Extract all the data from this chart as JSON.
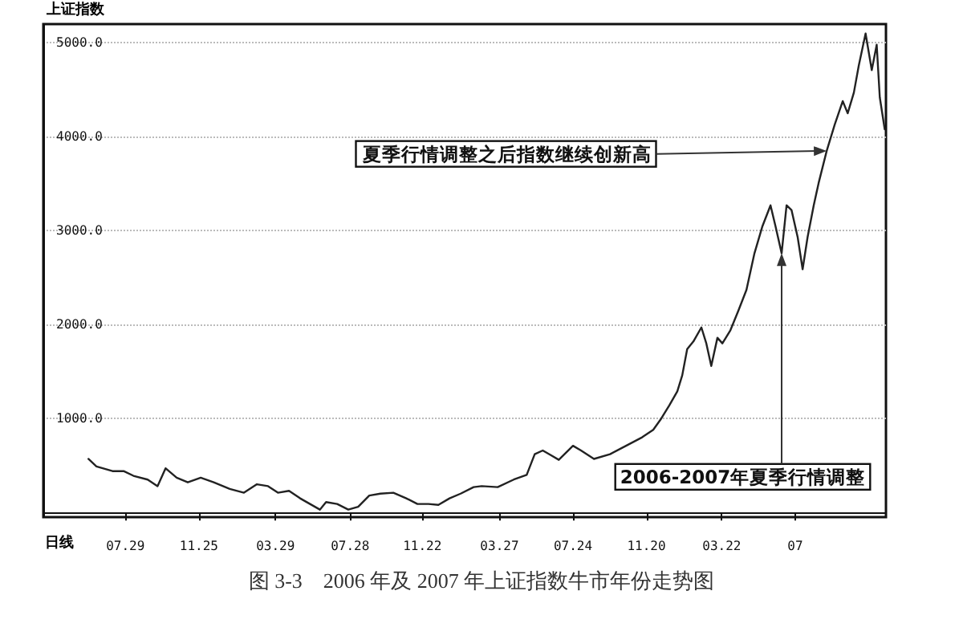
{
  "chart_data": {
    "type": "line",
    "title": "图 3-3　2006 年及 2007 年上证指数牛市年份走势图",
    "annotations": [
      "上证指数",
      {
        "text": "夏季行情调整之后指数继续创新高",
        "x": "2007-09-08",
        "y": 3850
      },
      {
        "text": "2006-2007年夏季行情调整",
        "x": "2007-06-27",
        "y": 2760
      },
      "日线"
    ],
    "x": [
      "2004-05-30",
      "2004-06-12",
      "2004-07-08",
      "2004-07-26",
      "2004-08-11",
      "2004-09-03",
      "2004-09-19",
      "2004-10-02",
      "2004-10-20",
      "2004-11-07",
      "2004-11-28",
      "2004-12-19",
      "2005-01-14",
      "2005-02-06",
      "2005-02-27",
      "2005-03-17",
      "2005-04-02",
      "2005-04-20",
      "2005-05-08",
      "2005-05-24",
      "2005-06-09",
      "2005-06-19",
      "2005-07-07",
      "2005-07-25",
      "2005-08-10",
      "2005-08-28",
      "2005-09-15",
      "2005-10-06",
      "2005-10-27",
      "2005-11-14",
      "2005-12-02",
      "2005-12-18",
      "2006-01-05",
      "2006-01-23",
      "2006-02-13",
      "2006-02-26",
      "2006-03-24",
      "2006-04-19",
      "2006-05-10",
      "2006-05-23",
      "2006-06-05",
      "2006-06-18",
      "2006-07-01",
      "2006-07-24",
      "2006-08-06",
      "2006-08-27",
      "2006-09-22",
      "2006-10-18",
      "2006-11-13",
      "2006-12-01",
      "2006-12-14",
      "2006-12-27",
      "2007-01-09",
      "2007-01-17",
      "2007-01-25",
      "2007-02-04",
      "2007-02-17",
      "2007-02-25",
      "2007-03-05",
      "2007-03-15",
      "2007-03-23",
      "2007-04-05",
      "2007-04-18",
      "2007-05-01",
      "2007-05-14",
      "2007-05-27",
      "2007-06-09",
      "2007-06-17",
      "2007-06-27",
      "2007-07-05",
      "2007-07-13",
      "2007-07-23",
      "2007-07-31",
      "2007-08-08",
      "2007-08-18",
      "2007-08-26",
      "2007-09-08",
      "2007-09-21",
      "2007-10-04",
      "2007-10-12",
      "2007-10-22",
      "2007-10-30",
      "2007-11-10",
      "2007-11-20",
      "2007-11-28",
      "2007-12-03",
      "2007-12-11"
    ],
    "series": [
      {
        "color": "#222222",
        "values": [
          570,
          490,
          440,
          440,
          390,
          350,
          280,
          470,
          370,
          320,
          370,
          320,
          250,
          210,
          300,
          280,
          210,
          230,
          150,
          90,
          30,
          110,
          90,
          30,
          60,
          180,
          200,
          210,
          150,
          90,
          90,
          80,
          150,
          200,
          270,
          280,
          270,
          350,
          400,
          620,
          660,
          610,
          560,
          710,
          660,
          570,
          620,
          710,
          800,
          880,
          1000,
          1140,
          1290,
          1460,
          1740,
          1820,
          1970,
          1800,
          1560,
          1860,
          1800,
          1940,
          2150,
          2370,
          2760,
          3050,
          3270,
          3050,
          2760,
          3270,
          3220,
          2930,
          2590,
          2930,
          3270,
          3510,
          3850,
          4130,
          4380,
          4250,
          4470,
          4760,
          5100,
          4710,
          4980,
          4420,
          4080
        ]
      }
    ],
    "xlim": [
      "2004-03-18",
      "2007-12-13"
    ],
    "xticks": [
      {
        "value": "2004-07-29",
        "label": "07.29"
      },
      {
        "value": "2004-11-25",
        "label": "11.25"
      },
      {
        "value": "2005-03-29",
        "label": "03.29"
      },
      {
        "value": "2005-07-28",
        "label": "07.28"
      },
      {
        "value": "2005-11-22",
        "label": "11.22"
      },
      {
        "value": "2006-03-27",
        "label": "03.27"
      },
      {
        "value": "2006-07-24",
        "label": "07.24"
      },
      {
        "value": "2006-11-20",
        "label": "11.20"
      },
      {
        "value": "2007-03-22",
        "label": "03.22"
      },
      {
        "value": "2007-07-19",
        "label": "07"
      }
    ],
    "ylim": [
      -50,
      5200
    ],
    "yticks": [
      {
        "value": 1000,
        "label": "1000.0"
      },
      {
        "value": 2000,
        "label": "2000.0"
      },
      {
        "value": 3000,
        "label": "3000.0"
      },
      {
        "value": 4000,
        "label": "4000.0"
      },
      {
        "value": 5000,
        "label": "5000.0"
      }
    ],
    "grid": "y",
    "line_style": "solid",
    "marker": "none"
  }
}
